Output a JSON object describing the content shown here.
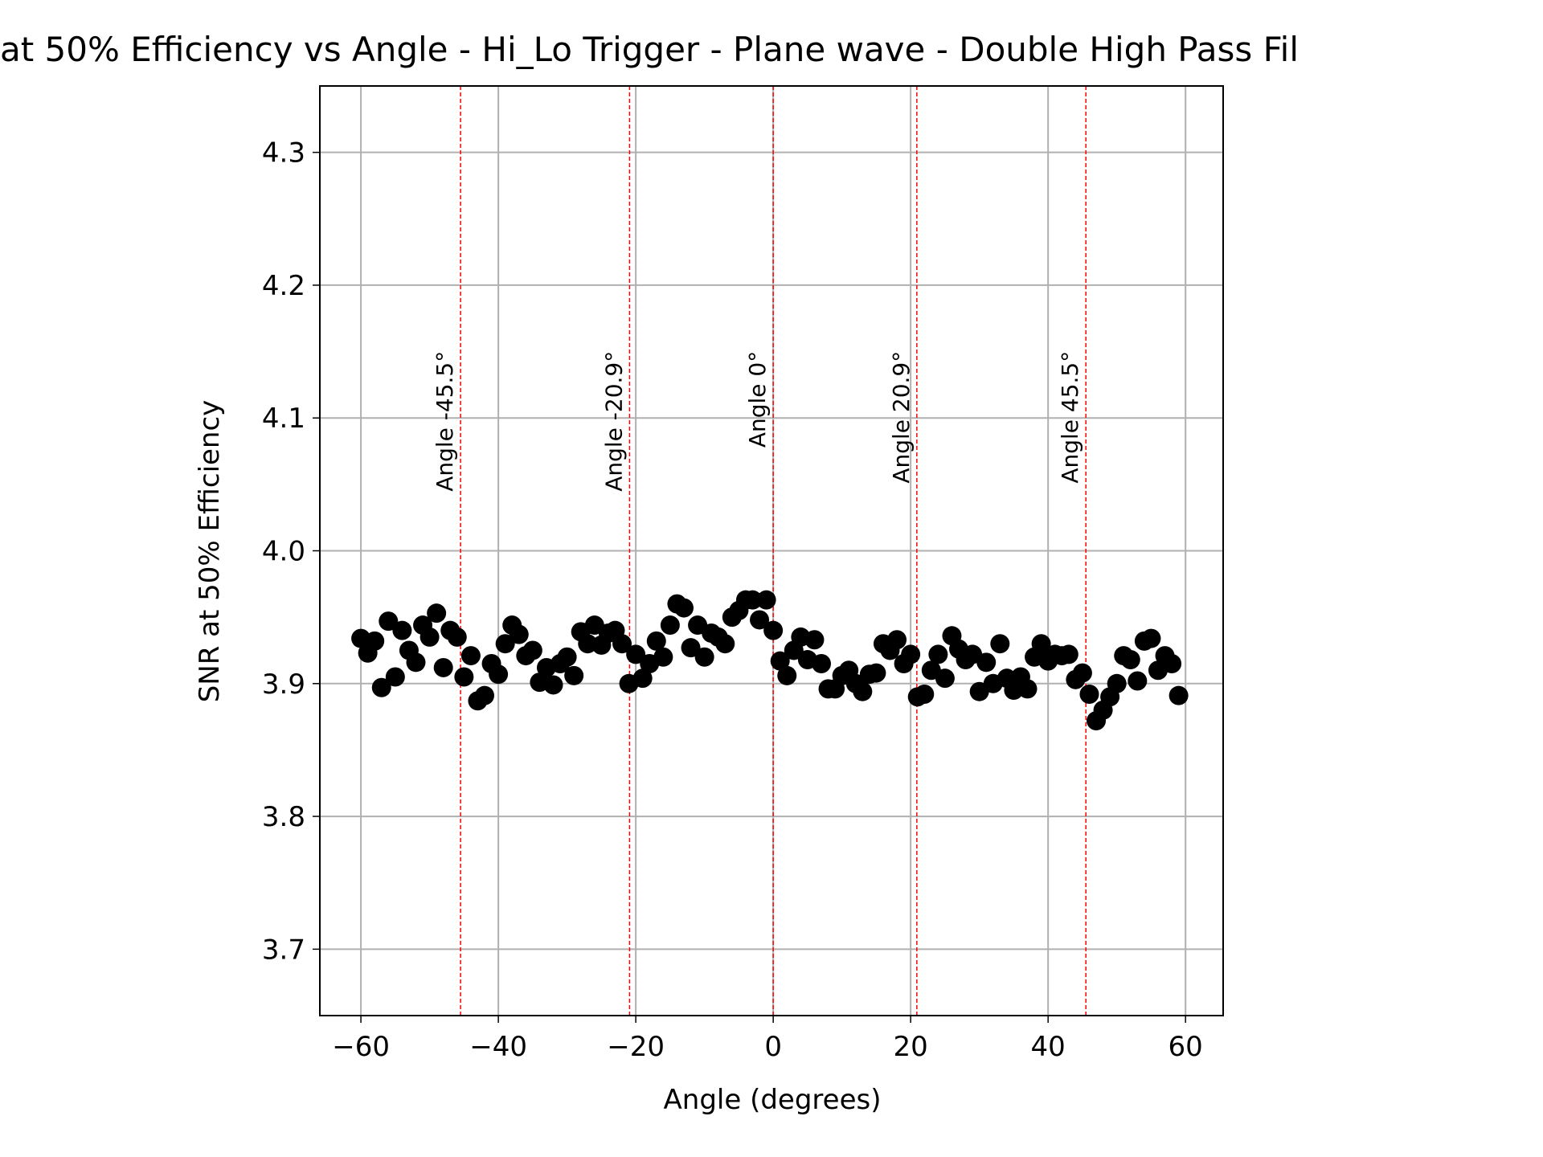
{
  "chart_data": {
    "type": "scatter",
    "title": "at 50% Efficiency vs Angle - Hi_Lo Trigger - Plane wave - Double High Pass Fil",
    "xlabel": "Angle (degrees)",
    "ylabel": "SNR at 50% Efficiency",
    "x": [
      -60,
      -59,
      -58,
      -57,
      -56,
      -55,
      -54,
      -53,
      -52,
      -51,
      -50,
      -49,
      -48,
      -47,
      -46,
      -45,
      -44,
      -43,
      -42,
      -41,
      -40,
      -39,
      -38,
      -37,
      -36,
      -35,
      -34,
      -33,
      -32,
      -31,
      -30,
      -29,
      -28,
      -27,
      -26,
      -25,
      -24,
      -23,
      -22,
      -21,
      -20,
      -19,
      -18,
      -17,
      -16,
      -15,
      -14,
      -13,
      -12,
      -11,
      -10,
      -9,
      -8,
      -7,
      -6,
      -5,
      -4,
      -3,
      -2,
      -1,
      0,
      1,
      2,
      3,
      4,
      5,
      6,
      7,
      8,
      9,
      10,
      11,
      12,
      13,
      14,
      15,
      16,
      17,
      18,
      19,
      20,
      21,
      22,
      23,
      24,
      25,
      26,
      27,
      28,
      29,
      30,
      31,
      32,
      33,
      34,
      35,
      36,
      37,
      38,
      39,
      40,
      41,
      42,
      43,
      44,
      45,
      46,
      47,
      48,
      49,
      50,
      51,
      52,
      53,
      54,
      55,
      56,
      57,
      58,
      59
    ],
    "values": [
      3.934,
      3.923,
      3.932,
      3.897,
      3.947,
      3.905,
      3.94,
      3.925,
      3.916,
      3.944,
      3.935,
      3.953,
      3.912,
      3.94,
      3.935,
      3.905,
      3.921,
      3.887,
      3.891,
      3.915,
      3.907,
      3.93,
      3.944,
      3.937,
      3.921,
      3.925,
      3.901,
      3.912,
      3.899,
      3.915,
      3.92,
      3.906,
      3.939,
      3.93,
      3.944,
      3.929,
      3.938,
      3.94,
      3.93,
      3.9,
      3.922,
      3.904,
      3.915,
      3.932,
      3.92,
      3.944,
      3.96,
      3.957,
      3.927,
      3.944,
      3.92,
      3.938,
      3.935,
      3.93,
      3.95,
      3.955,
      3.963,
      3.963,
      3.948,
      3.963,
      3.94,
      3.917,
      3.906,
      3.925,
      3.935,
      3.918,
      3.933,
      3.915,
      3.896,
      3.896,
      3.906,
      3.91,
      3.9,
      3.894,
      3.907,
      3.908,
      3.93,
      3.925,
      3.933,
      3.915,
      3.922,
      3.89,
      3.892,
      3.91,
      3.922,
      3.904,
      3.936,
      3.926,
      3.918,
      3.922,
      3.894,
      3.916,
      3.9,
      3.93,
      3.904,
      3.895,
      3.905,
      3.896,
      3.92,
      3.93,
      3.917,
      3.922,
      3.921,
      3.922,
      3.903,
      3.908,
      3.892,
      3.872,
      3.88,
      3.89,
      3.9,
      3.921,
      3.918,
      3.902,
      3.932,
      3.934,
      3.91,
      3.921,
      3.915,
      3.891
    ],
    "color": "#000000",
    "xlim": [
      -65.975,
      65.475
    ],
    "ylim": [
      3.65,
      4.35
    ],
    "xticks": [
      {
        "value": -60,
        "label": "−60"
      },
      {
        "value": -40,
        "label": "−40"
      },
      {
        "value": -20,
        "label": "−20"
      },
      0,
      20,
      40,
      60
    ],
    "yticks": [
      3.7,
      3.8,
      3.9,
      {
        "value": 4.0,
        "label": "4.0"
      },
      4.1,
      4.2,
      4.3
    ],
    "grid": true,
    "vlines": [
      {
        "x": -45.5,
        "label": "Angle -45.5°"
      },
      {
        "x": -20.9,
        "label": "Angle -20.9°"
      },
      {
        "x": 0,
        "label": "Angle 0°"
      },
      {
        "x": 20.9,
        "label": "Angle 20.9°"
      },
      {
        "x": 45.5,
        "label": "Angle 45.5°"
      }
    ],
    "vline_color": "#ff0000",
    "vline_label_color": "#008000"
  }
}
